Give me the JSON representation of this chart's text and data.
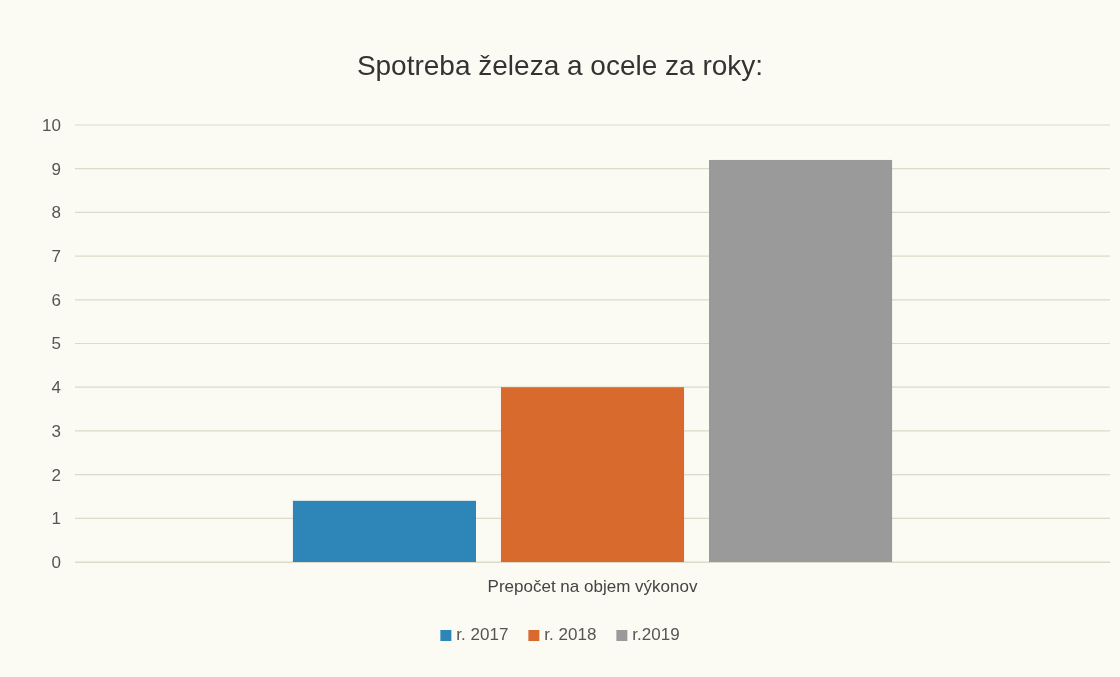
{
  "chart_data": {
    "type": "bar",
    "title": "Spotreba železa a ocele  za roky:",
    "categories": [
      "Prepočet na objem výkonov"
    ],
    "series": [
      {
        "name": "r. 2017",
        "color": "#2e86b8",
        "values": [
          1.4
        ]
      },
      {
        "name": "r. 2018",
        "color": "#d86a2e",
        "values": [
          4
        ]
      },
      {
        "name": "r.2019",
        "color": "#9a9a9a",
        "values": [
          9.2
        ]
      }
    ],
    "ylim": [
      0,
      10
    ],
    "yticks": [
      0,
      1,
      2,
      3,
      4,
      5,
      6,
      7,
      8,
      9,
      10
    ],
    "grid": "y",
    "legend": "bottom"
  }
}
